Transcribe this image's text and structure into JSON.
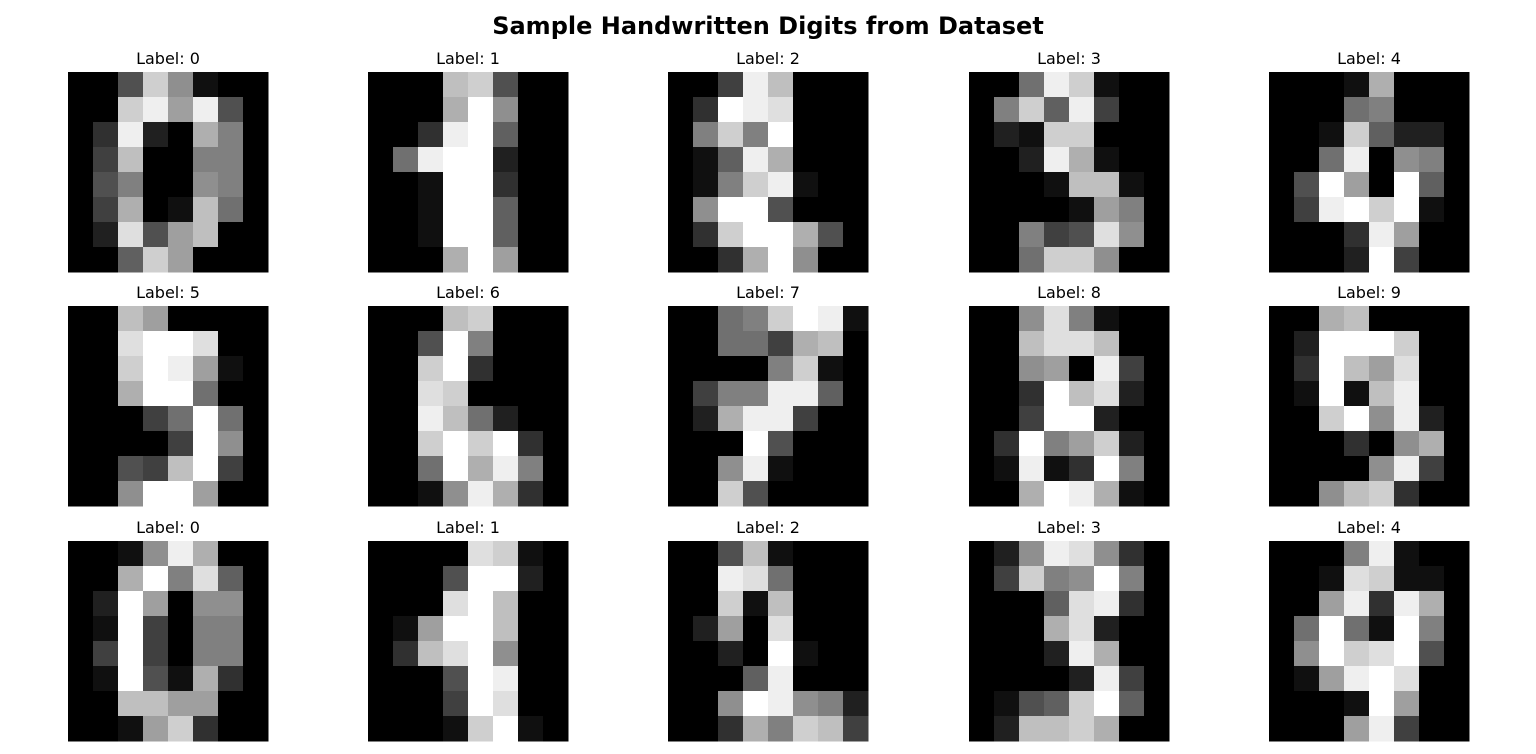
{
  "title": "Sample Handwritten Digits from Dataset",
  "chart_data": {
    "type": "heatmap",
    "colormap": "gray",
    "value_range": [
      0,
      16
    ],
    "grid": false,
    "axes": "off",
    "rows": 3,
    "cols": 5,
    "panels": [
      {
        "title": "Label: 0",
        "pixels": [
          [
            0,
            0,
            5,
            13,
            9,
            1,
            0,
            0
          ],
          [
            0,
            0,
            13,
            15,
            10,
            15,
            5,
            0
          ],
          [
            0,
            3,
            15,
            2,
            0,
            11,
            8,
            0
          ],
          [
            0,
            4,
            12,
            0,
            0,
            8,
            8,
            0
          ],
          [
            0,
            5,
            8,
            0,
            0,
            9,
            8,
            0
          ],
          [
            0,
            4,
            11,
            0,
            1,
            12,
            7,
            0
          ],
          [
            0,
            2,
            14,
            5,
            10,
            12,
            0,
            0
          ],
          [
            0,
            0,
            6,
            13,
            10,
            0,
            0,
            0
          ]
        ]
      },
      {
        "title": "Label: 1",
        "pixels": [
          [
            0,
            0,
            0,
            12,
            13,
            5,
            0,
            0
          ],
          [
            0,
            0,
            0,
            11,
            16,
            9,
            0,
            0
          ],
          [
            0,
            0,
            3,
            15,
            16,
            6,
            0,
            0
          ],
          [
            0,
            7,
            15,
            16,
            16,
            2,
            0,
            0
          ],
          [
            0,
            0,
            1,
            16,
            16,
            3,
            0,
            0
          ],
          [
            0,
            0,
            1,
            16,
            16,
            6,
            0,
            0
          ],
          [
            0,
            0,
            1,
            16,
            16,
            6,
            0,
            0
          ],
          [
            0,
            0,
            0,
            11,
            16,
            10,
            0,
            0
          ]
        ]
      },
      {
        "title": "Label: 2",
        "pixels": [
          [
            0,
            0,
            4,
            15,
            12,
            0,
            0,
            0
          ],
          [
            0,
            3,
            16,
            15,
            14,
            0,
            0,
            0
          ],
          [
            0,
            8,
            13,
            8,
            16,
            0,
            0,
            0
          ],
          [
            0,
            1,
            6,
            15,
            11,
            0,
            0,
            0
          ],
          [
            0,
            1,
            8,
            13,
            15,
            1,
            0,
            0
          ],
          [
            0,
            9,
            16,
            16,
            5,
            0,
            0,
            0
          ],
          [
            0,
            3,
            13,
            16,
            16,
            11,
            5,
            0
          ],
          [
            0,
            0,
            3,
            11,
            16,
            9,
            0,
            0
          ]
        ]
      },
      {
        "title": "Label: 3",
        "pixels": [
          [
            0,
            0,
            7,
            15,
            13,
            1,
            0,
            0
          ],
          [
            0,
            8,
            13,
            6,
            15,
            4,
            0,
            0
          ],
          [
            0,
            2,
            1,
            13,
            13,
            0,
            0,
            0
          ],
          [
            0,
            0,
            2,
            15,
            11,
            1,
            0,
            0
          ],
          [
            0,
            0,
            0,
            1,
            12,
            12,
            1,
            0
          ],
          [
            0,
            0,
            0,
            0,
            1,
            10,
            8,
            0
          ],
          [
            0,
            0,
            8,
            4,
            5,
            14,
            9,
            0
          ],
          [
            0,
            0,
            7,
            13,
            13,
            9,
            0,
            0
          ]
        ]
      },
      {
        "title": "Label: 4",
        "pixels": [
          [
            0,
            0,
            0,
            1,
            11,
            0,
            0,
            0
          ],
          [
            0,
            0,
            0,
            7,
            8,
            0,
            0,
            0
          ],
          [
            0,
            0,
            1,
            13,
            6,
            2,
            2,
            0
          ],
          [
            0,
            0,
            7,
            15,
            0,
            9,
            8,
            0
          ],
          [
            0,
            5,
            16,
            10,
            0,
            16,
            6,
            0
          ],
          [
            0,
            4,
            15,
            16,
            13,
            16,
            1,
            0
          ],
          [
            0,
            0,
            0,
            3,
            15,
            10,
            0,
            0
          ],
          [
            0,
            0,
            0,
            2,
            16,
            4,
            0,
            0
          ]
        ]
      },
      {
        "title": "Label: 5",
        "pixels": [
          [
            0,
            0,
            12,
            10,
            0,
            0,
            0,
            0
          ],
          [
            0,
            0,
            14,
            16,
            16,
            14,
            0,
            0
          ],
          [
            0,
            0,
            13,
            16,
            15,
            10,
            1,
            0
          ],
          [
            0,
            0,
            11,
            16,
            16,
            7,
            0,
            0
          ],
          [
            0,
            0,
            0,
            4,
            7,
            16,
            7,
            0
          ],
          [
            0,
            0,
            0,
            0,
            4,
            16,
            9,
            0
          ],
          [
            0,
            0,
            5,
            4,
            12,
            16,
            4,
            0
          ],
          [
            0,
            0,
            9,
            16,
            16,
            10,
            0,
            0
          ]
        ]
      },
      {
        "title": "Label: 6",
        "pixels": [
          [
            0,
            0,
            0,
            12,
            13,
            0,
            0,
            0
          ],
          [
            0,
            0,
            5,
            16,
            8,
            0,
            0,
            0
          ],
          [
            0,
            0,
            13,
            16,
            3,
            0,
            0,
            0
          ],
          [
            0,
            0,
            14,
            13,
            0,
            0,
            0,
            0
          ],
          [
            0,
            0,
            15,
            12,
            7,
            2,
            0,
            0
          ],
          [
            0,
            0,
            13,
            16,
            13,
            16,
            3,
            0
          ],
          [
            0,
            0,
            7,
            16,
            11,
            15,
            8,
            0
          ],
          [
            0,
            0,
            1,
            9,
            15,
            11,
            3,
            0
          ]
        ]
      },
      {
        "title": "Label: 7",
        "pixels": [
          [
            0,
            0,
            7,
            8,
            13,
            16,
            15,
            1
          ],
          [
            0,
            0,
            7,
            7,
            4,
            11,
            12,
            0
          ],
          [
            0,
            0,
            0,
            0,
            8,
            13,
            1,
            0
          ],
          [
            0,
            4,
            8,
            8,
            15,
            15,
            6,
            0
          ],
          [
            0,
            2,
            11,
            15,
            15,
            4,
            0,
            0
          ],
          [
            0,
            0,
            0,
            16,
            5,
            0,
            0,
            0
          ],
          [
            0,
            0,
            9,
            15,
            1,
            0,
            0,
            0
          ],
          [
            0,
            0,
            13,
            5,
            0,
            0,
            0,
            0
          ]
        ]
      },
      {
        "title": "Label: 8",
        "pixels": [
          [
            0,
            0,
            9,
            14,
            8,
            1,
            0,
            0
          ],
          [
            0,
            0,
            12,
            14,
            14,
            12,
            0,
            0
          ],
          [
            0,
            0,
            9,
            10,
            0,
            15,
            4,
            0
          ],
          [
            0,
            0,
            3,
            16,
            12,
            14,
            2,
            0
          ],
          [
            0,
            0,
            4,
            16,
            16,
            2,
            0,
            0
          ],
          [
            0,
            3,
            16,
            8,
            10,
            13,
            2,
            0
          ],
          [
            0,
            1,
            15,
            1,
            3,
            16,
            8,
            0
          ],
          [
            0,
            0,
            11,
            16,
            15,
            11,
            1,
            0
          ]
        ]
      },
      {
        "title": "Label: 9",
        "pixels": [
          [
            0,
            0,
            11,
            12,
            0,
            0,
            0,
            0
          ],
          [
            0,
            2,
            16,
            16,
            16,
            13,
            0,
            0
          ],
          [
            0,
            3,
            16,
            12,
            10,
            14,
            0,
            0
          ],
          [
            0,
            1,
            16,
            1,
            12,
            15,
            0,
            0
          ],
          [
            0,
            0,
            13,
            16,
            9,
            15,
            2,
            0
          ],
          [
            0,
            0,
            0,
            3,
            0,
            9,
            11,
            0
          ],
          [
            0,
            0,
            0,
            0,
            9,
            15,
            4,
            0
          ],
          [
            0,
            0,
            9,
            12,
            13,
            3,
            0,
            0
          ]
        ]
      },
      {
        "title": "Label: 0",
        "pixels": [
          [
            0,
            0,
            1,
            9,
            15,
            11,
            0,
            0
          ],
          [
            0,
            0,
            11,
            16,
            8,
            14,
            6,
            0
          ],
          [
            0,
            2,
            16,
            10,
            0,
            9,
            9,
            0
          ],
          [
            0,
            1,
            16,
            4,
            0,
            8,
            8,
            0
          ],
          [
            0,
            4,
            16,
            4,
            0,
            8,
            8,
            0
          ],
          [
            0,
            1,
            16,
            5,
            1,
            11,
            3,
            0
          ],
          [
            0,
            0,
            12,
            12,
            10,
            10,
            0,
            0
          ],
          [
            0,
            0,
            1,
            10,
            13,
            3,
            0,
            0
          ]
        ]
      },
      {
        "title": "Label: 1",
        "pixels": [
          [
            0,
            0,
            0,
            0,
            14,
            13,
            1,
            0
          ],
          [
            0,
            0,
            0,
            5,
            16,
            16,
            2,
            0
          ],
          [
            0,
            0,
            0,
            14,
            16,
            12,
            0,
            0
          ],
          [
            0,
            1,
            10,
            16,
            16,
            12,
            0,
            0
          ],
          [
            0,
            3,
            12,
            14,
            16,
            9,
            0,
            0
          ],
          [
            0,
            0,
            0,
            5,
            16,
            15,
            0,
            0
          ],
          [
            0,
            0,
            0,
            4,
            16,
            14,
            0,
            0
          ],
          [
            0,
            0,
            0,
            1,
            13,
            16,
            1,
            0
          ]
        ]
      },
      {
        "title": "Label: 2",
        "pixels": [
          [
            0,
            0,
            5,
            12,
            1,
            0,
            0,
            0
          ],
          [
            0,
            0,
            15,
            14,
            7,
            0,
            0,
            0
          ],
          [
            0,
            0,
            13,
            1,
            12,
            0,
            0,
            0
          ],
          [
            0,
            2,
            10,
            0,
            14,
            0,
            0,
            0
          ],
          [
            0,
            0,
            2,
            0,
            16,
            1,
            0,
            0
          ],
          [
            0,
            0,
            0,
            6,
            15,
            0,
            0,
            0
          ],
          [
            0,
            0,
            9,
            16,
            15,
            9,
            8,
            2
          ],
          [
            0,
            0,
            3,
            11,
            8,
            13,
            12,
            4
          ]
        ]
      },
      {
        "title": "Label: 3",
        "pixels": [
          [
            0,
            2,
            9,
            15,
            14,
            9,
            3,
            0
          ],
          [
            0,
            4,
            13,
            8,
            9,
            16,
            8,
            0
          ],
          [
            0,
            0,
            0,
            6,
            14,
            15,
            3,
            0
          ],
          [
            0,
            0,
            0,
            11,
            14,
            2,
            0,
            0
          ],
          [
            0,
            0,
            0,
            2,
            15,
            11,
            0,
            0
          ],
          [
            0,
            0,
            0,
            0,
            2,
            15,
            4,
            0
          ],
          [
            0,
            1,
            5,
            6,
            13,
            16,
            6,
            0
          ],
          [
            0,
            2,
            12,
            12,
            13,
            11,
            0,
            0
          ]
        ]
      },
      {
        "title": "Label: 4",
        "pixels": [
          [
            0,
            0,
            0,
            8,
            15,
            1,
            0,
            0
          ],
          [
            0,
            0,
            1,
            14,
            13,
            1,
            1,
            0
          ],
          [
            0,
            0,
            10,
            15,
            3,
            15,
            11,
            0
          ],
          [
            0,
            7,
            16,
            7,
            1,
            16,
            8,
            0
          ],
          [
            0,
            9,
            16,
            13,
            14,
            16,
            5,
            0
          ],
          [
            0,
            1,
            10,
            15,
            16,
            14,
            0,
            0
          ],
          [
            0,
            0,
            0,
            1,
            16,
            10,
            0,
            0
          ],
          [
            0,
            0,
            0,
            10,
            15,
            4,
            0,
            0
          ]
        ]
      }
    ]
  }
}
